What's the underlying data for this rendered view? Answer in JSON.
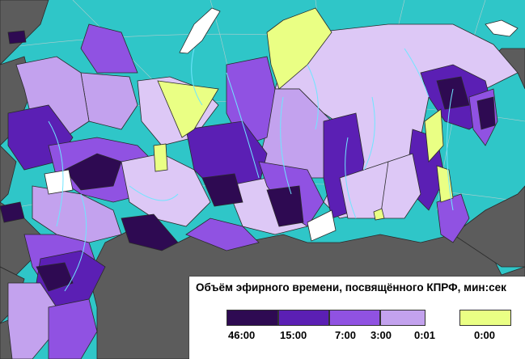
{
  "legend": {
    "title": "Объём эфирного времени, посвящённого КПРФ, мин:сек",
    "labels": [
      "46:00",
      "15:00",
      "7:00",
      "3:00",
      "0:01",
      "0:00"
    ],
    "colors": [
      "#2e0a52",
      "#5b1fb4",
      "#9052e2",
      "#c3a2ee",
      "#ddc8f6",
      "#eaff84"
    ]
  },
  "map_colors": {
    "sea": "#2fc6c8",
    "foreign_land": "#5c5c5c",
    "region_borders": "#2a2a2a",
    "rivers": "#6fe6ff",
    "ice": "#ffffff",
    "no_data": "#ffffff"
  }
}
